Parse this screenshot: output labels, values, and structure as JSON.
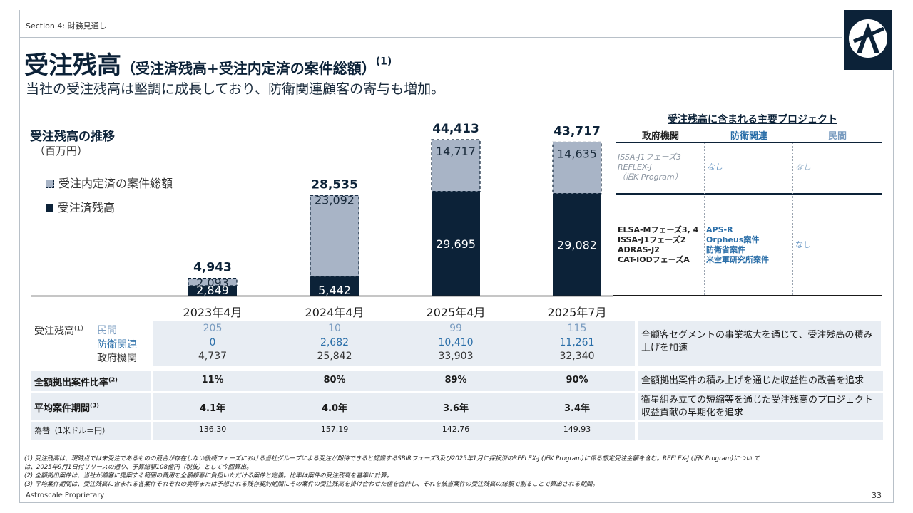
{
  "section": "Section 4: 財務見通し",
  "title": {
    "main": "受注残高",
    "sub": "（受注済残高+受注内定済の案件総額）",
    "note": "(1)"
  },
  "subtitle": "当社の受注残高は堅調に成長しており、防衛関連顧客の寄与も増加。",
  "chart_data": {
    "type": "bar",
    "title": "受注残高の推移",
    "ylabel": "（百万円）",
    "categories": [
      "2023年4月",
      "2024年4月",
      "2025年4月",
      "2025年7月"
    ],
    "series": [
      {
        "name": "受注済残高",
        "values": [
          2849,
          5442,
          29695,
          29082
        ],
        "labels": [
          "2,849",
          "5,442",
          "29,695",
          "29,082"
        ],
        "color": "#0c2238"
      },
      {
        "name": "受注内定済の案件総額",
        "values": [
          2093,
          23092,
          14717,
          14635
        ],
        "labels": [
          "2,093",
          "23,092",
          "14,717",
          "14,635"
        ],
        "color": "#a8b4c6"
      }
    ],
    "totals": [
      "4,943",
      "28,535",
      "44,413",
      "43,717"
    ],
    "legend_order": [
      "受注内定済の案件総額",
      "受注済残高"
    ],
    "ylim": [
      0,
      50000
    ]
  },
  "breakdown": {
    "label": "受注残高",
    "label_note": "(1)",
    "rows": [
      {
        "name": "民間",
        "values": [
          "205",
          "10",
          "99",
          "115"
        ]
      },
      {
        "name": "防衛関連",
        "values": [
          "0",
          "2,682",
          "10,410",
          "11,261"
        ]
      },
      {
        "name": "政府機関",
        "values": [
          "4,737",
          "25,842",
          "33,903",
          "32,340"
        ]
      }
    ],
    "comment": "全顧客セグメントの事業拡大を通じて、受注残高の積み上げを加速"
  },
  "metrics": [
    {
      "label": "全額拠出案件比率",
      "note": "(2)",
      "values": [
        "11%",
        "80%",
        "89%",
        "90%"
      ],
      "comment": "全額拠出案件の積み上げを通じた収益性の改善を追求"
    },
    {
      "label": "平均案件期間",
      "note": "(3)",
      "values": [
        "4.1年",
        "4.0年",
        "3.6年",
        "3.4年"
      ],
      "comment": "衛星組み立ての短縮等を通じた受注残高のプロジェクト収益貢献の早期化を追求"
    },
    {
      "label": "為替（1米ドル＝円）",
      "note": "",
      "values": [
        "136.30",
        "157.19",
        "142.76",
        "149.93"
      ],
      "comment": ""
    }
  ],
  "projects": {
    "title": "受注残高に含まれる主要プロジェクト",
    "headers": [
      "政府機関",
      "防衛関連",
      "民間"
    ],
    "row1": {
      "gov": [
        "ISSA-J1フェーズ3",
        "REFLEX-J",
        "（旧K Program）"
      ],
      "def": "なし",
      "civ": "なし"
    },
    "row2": {
      "gov": [
        "ELSA-Mフェーズ3, 4",
        "ISSA-J1フェーズ2",
        "ADRAS-J2",
        "CAT-IODフェーズA"
      ],
      "def": [
        "APS-R",
        "Orpheus案件",
        "防衛省案件",
        "米空軍研究所案件"
      ],
      "civ": "なし"
    }
  },
  "footnotes": [
    "(1) 受注残高は、現時点では未受注であるものの競合が存在しない後続フェーズにおける当社グループによる受注が期待できると認識するSBIRフェーズ3及び2025年1月に採択済のREFLEX-J (旧K Program)に係る想定受注金額を含む。REFLEX-J (旧K Program)につい て",
    "は、2025年9月1日付リリースの通り、予算総額108億円（税抜）として今回算出。",
    "(2) 全額拠出案件は、当社が顧客に提案する範囲の費用を全額顧客に負担いただける案件と定義。比率は案件の受注残高を基準に計算。",
    "(3) 平均案件期間は、受注残高に含まれる各案件それぞれの実際または予想される残存契約期間にその案件の受注残高を掛け合わせた値を合計し、それを該当案件の受注残高の総額で割ることで算出される期間。"
  ],
  "footer": {
    "left": "Astroscale Proprietary",
    "page": "33"
  }
}
